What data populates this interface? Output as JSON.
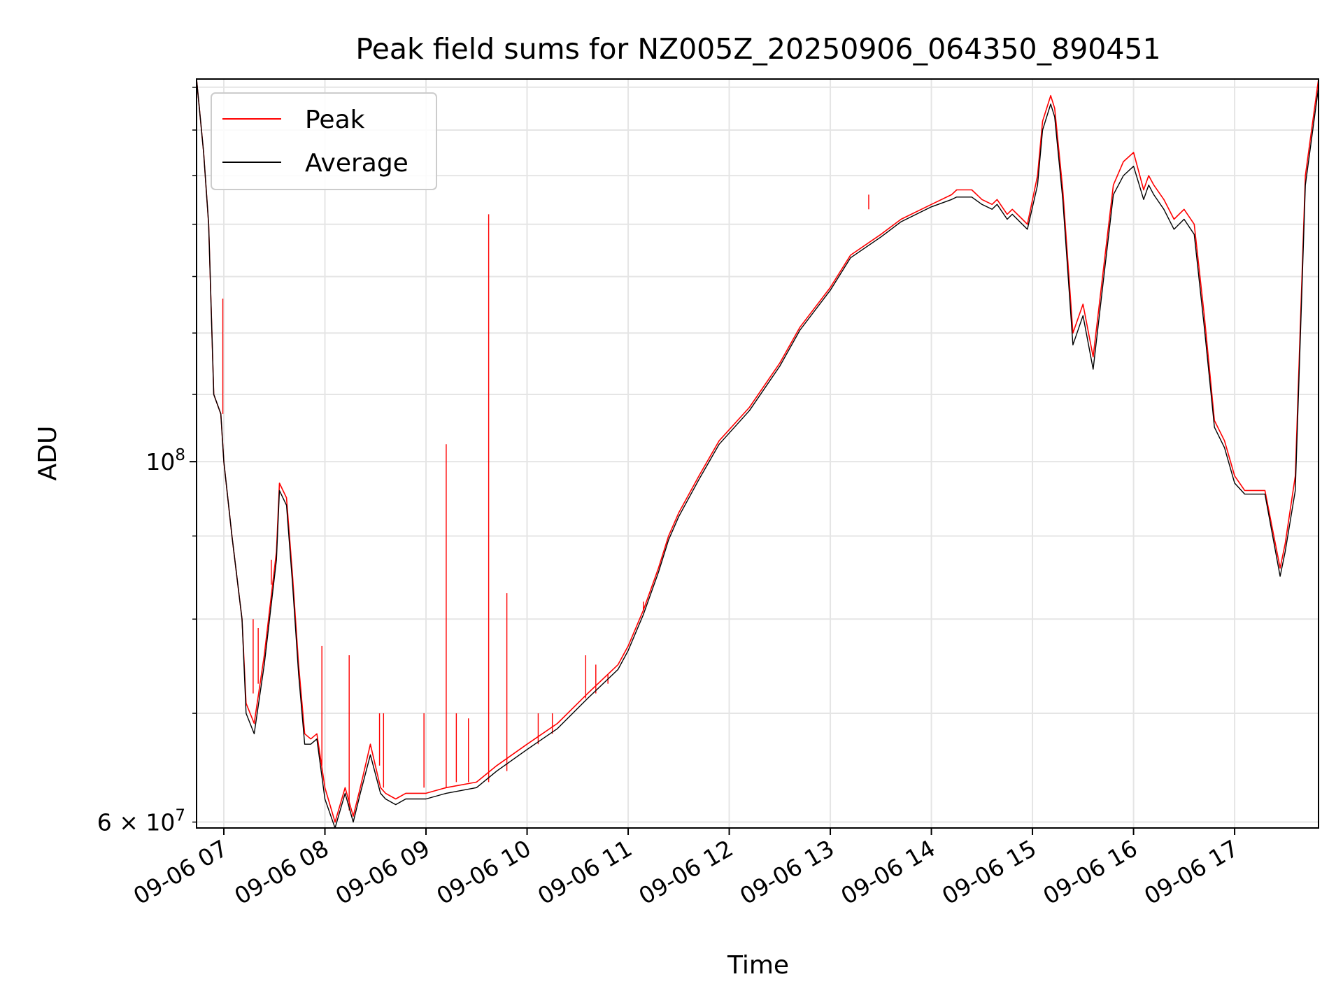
{
  "chart_data": {
    "type": "line",
    "title": "Peak field sums for NZ005Z_20250906_064350_890451",
    "xlabel": "Time",
    "ylabel": "ADU",
    "yscale": "log",
    "x_unit": "hour of day on 09-06",
    "x_range": [
      6.73,
      17.83
    ],
    "ylim": [
      59500000,
      172000000
    ],
    "grid": true,
    "legend_position": "top-left",
    "x_tick_labels": [
      "09-06 07",
      "09-06 08",
      "09-06 09",
      "09-06 10",
      "09-06 11",
      "09-06 12",
      "09-06 13",
      "09-06 14",
      "09-06 15",
      "09-06 16",
      "09-06 17"
    ],
    "y_tick_labels": [
      {
        "base": "10",
        "exp": "8",
        "value": 100000000
      },
      {
        "mant": "6",
        "base": "10",
        "exp": "7",
        "value": 60000000
      }
    ],
    "series": [
      {
        "name": "Peak",
        "color": "#ff0000",
        "x": [
          6.73,
          6.8,
          6.85,
          6.9,
          6.97,
          7.0,
          7.08,
          7.18,
          7.22,
          7.3,
          7.4,
          7.52,
          7.55,
          7.62,
          7.68,
          7.74,
          7.8,
          7.86,
          7.92,
          8.0,
          8.1,
          8.2,
          8.28,
          8.35,
          8.45,
          8.55,
          8.6,
          8.7,
          8.8,
          9.0,
          9.2,
          9.5,
          9.7,
          10.0,
          10.3,
          10.6,
          10.9,
          11.0,
          11.15,
          11.3,
          11.4,
          11.5,
          11.7,
          11.9,
          12.2,
          12.5,
          12.7,
          13.0,
          13.2,
          13.5,
          13.7,
          14.0,
          14.2,
          14.25,
          14.4,
          14.5,
          14.6,
          14.65,
          14.75,
          14.8,
          14.9,
          14.95,
          15.05,
          15.1,
          15.18,
          15.22,
          15.3,
          15.4,
          15.5,
          15.6,
          15.7,
          15.8,
          15.9,
          16.0,
          16.1,
          16.15,
          16.2,
          16.3,
          16.4,
          16.5,
          16.6,
          16.7,
          16.8,
          16.9,
          17.0,
          17.1,
          17.3,
          17.45,
          17.5,
          17.6,
          17.7,
          17.83
        ],
        "y": [
          172000000,
          155000000,
          140000000,
          110000000,
          107000000,
          100000000,
          90000000,
          80000000,
          71000000,
          69000000,
          76000000,
          88000000,
          97000000,
          95000000,
          85000000,
          75000000,
          68000000,
          67500000,
          68000000,
          63000000,
          60000000,
          63000000,
          60500000,
          63000000,
          67000000,
          63000000,
          62500000,
          62000000,
          62500000,
          62500000,
          63000000,
          63500000,
          65000000,
          67000000,
          69000000,
          72000000,
          75000000,
          77000000,
          81000000,
          86000000,
          90000000,
          93000000,
          98000000,
          103000000,
          108000000,
          115000000,
          121000000,
          128000000,
          134000000,
          138000000,
          141000000,
          144000000,
          146000000,
          147000000,
          147000000,
          145000000,
          144000000,
          145000000,
          142000000,
          143000000,
          141000000,
          140000000,
          150000000,
          162000000,
          168000000,
          165000000,
          147000000,
          120000000,
          125000000,
          116000000,
          131000000,
          148000000,
          153000000,
          155000000,
          147000000,
          150000000,
          148000000,
          145000000,
          141000000,
          143000000,
          140000000,
          123000000,
          106000000,
          103000000,
          98000000,
          96000000,
          96000000,
          86000000,
          89000000,
          98000000,
          150000000,
          172000000
        ]
      },
      {
        "name": "Average",
        "color": "#000000",
        "x": [
          6.73,
          6.8,
          6.85,
          6.9,
          6.97,
          7.0,
          7.08,
          7.18,
          7.22,
          7.3,
          7.4,
          7.52,
          7.55,
          7.62,
          7.68,
          7.74,
          7.8,
          7.86,
          7.92,
          8.0,
          8.1,
          8.2,
          8.28,
          8.35,
          8.45,
          8.55,
          8.6,
          8.7,
          8.8,
          9.0,
          9.2,
          9.5,
          9.7,
          10.0,
          10.3,
          10.6,
          10.9,
          11.0,
          11.15,
          11.3,
          11.4,
          11.5,
          11.7,
          11.9,
          12.2,
          12.5,
          12.7,
          13.0,
          13.2,
          13.5,
          13.7,
          14.0,
          14.2,
          14.25,
          14.4,
          14.5,
          14.6,
          14.65,
          14.75,
          14.8,
          14.9,
          14.95,
          15.05,
          15.1,
          15.18,
          15.22,
          15.3,
          15.4,
          15.5,
          15.6,
          15.7,
          15.8,
          15.9,
          16.0,
          16.1,
          16.15,
          16.2,
          16.3,
          16.4,
          16.5,
          16.6,
          16.7,
          16.8,
          16.9,
          17.0,
          17.1,
          17.3,
          17.45,
          17.5,
          17.6,
          17.7,
          17.83
        ],
        "y": [
          172000000,
          155000000,
          140000000,
          110000000,
          107000000,
          100000000,
          90000000,
          80000000,
          70000000,
          68000000,
          75000000,
          87000000,
          96000000,
          94000000,
          84000000,
          74000000,
          67000000,
          67000000,
          67500000,
          62000000,
          59500000,
          62500000,
          60000000,
          62500000,
          66000000,
          62500000,
          62000000,
          61500000,
          62000000,
          62000000,
          62500000,
          63000000,
          64500000,
          66500000,
          68500000,
          71500000,
          74500000,
          76500000,
          80500000,
          85500000,
          89500000,
          92500000,
          97500000,
          102500000,
          107500000,
          114500000,
          120500000,
          127500000,
          133500000,
          137500000,
          140500000,
          143500000,
          145000000,
          145500000,
          145500000,
          144000000,
          143000000,
          144000000,
          141000000,
          142000000,
          140000000,
          139000000,
          148000000,
          160000000,
          166000000,
          163000000,
          145000000,
          118000000,
          123000000,
          114000000,
          129000000,
          146000000,
          150000000,
          152000000,
          145000000,
          148000000,
          146000000,
          143000000,
          139000000,
          141000000,
          138000000,
          121000000,
          105000000,
          102000000,
          97000000,
          95500000,
          95500000,
          85000000,
          88000000,
          96000000,
          148000000,
          170000000
        ]
      }
    ],
    "spikes": {
      "name": "Peak",
      "x": [
        6.99,
        7.29,
        7.34,
        7.47,
        7.97,
        8.24,
        8.54,
        8.58,
        8.98,
        9.2,
        9.3,
        9.42,
        9.62,
        9.8,
        10.11,
        10.25,
        10.58,
        10.68,
        10.8,
        11.15,
        13.38
      ],
      "top": [
        126000000,
        80000000,
        79000000,
        84000000,
        77000000,
        76000000,
        70000000,
        70000000,
        70000000,
        102500000,
        70000000,
        69500000,
        142000000,
        83000000,
        70000000,
        70000000,
        76000000,
        75000000,
        74000000,
        82000000,
        146000000
      ],
      "base": [
        107000000,
        72000000,
        73000000,
        87000000,
        65000000,
        61000000,
        65000000,
        63000000,
        63000000,
        63000000,
        63500000,
        63500000,
        63500000,
        64500000,
        67000000,
        68000000,
        71500000,
        72000000,
        73000000,
        81000000,
        143000000
      ]
    }
  }
}
